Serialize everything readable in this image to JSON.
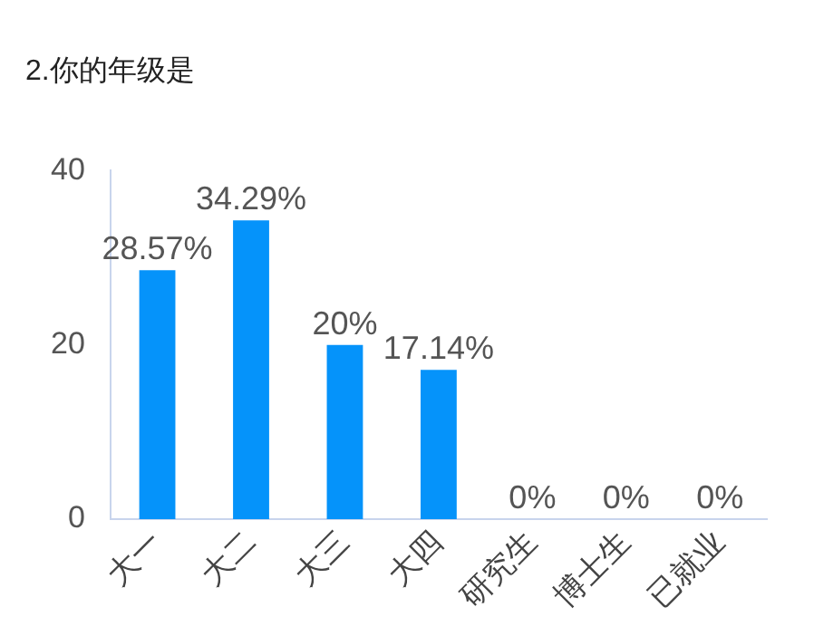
{
  "chart_data": {
    "type": "bar",
    "title": "2.你的年级是",
    "categories": [
      "大一",
      "大二",
      "大三",
      "大四",
      "研究生",
      "博士生",
      "已就业"
    ],
    "values": [
      28.57,
      34.29,
      20,
      17.14,
      0,
      0,
      0
    ],
    "value_labels": [
      "28.57%",
      "34.29%",
      "20%",
      "17.14%",
      "0%",
      "0%",
      "0%"
    ],
    "color": "#0593fa",
    "ylim": [
      0,
      40
    ],
    "yticks": [
      0,
      20,
      40
    ],
    "grid": false,
    "legend": false
  }
}
